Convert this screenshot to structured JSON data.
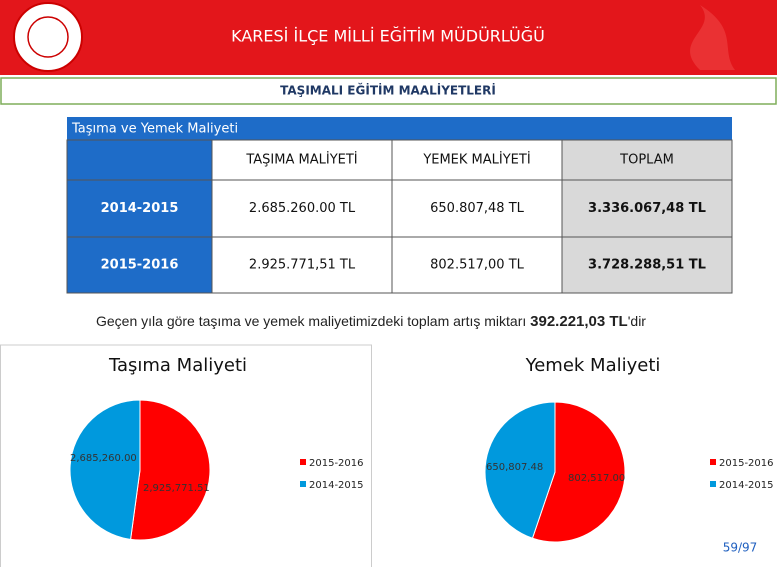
{
  "header": {
    "title": "KARESİ İLÇE MİLLİ EĞİTİM MÜDÜRLÜĞÜ",
    "subtitle": "TAŞIMALI EĞİTİM MAALİYETLERİ"
  },
  "table": {
    "caption": "Taşıma ve Yemek Maliyeti",
    "columns": [
      "TAŞIMA MALİYETİ",
      "YEMEK MALİYETİ",
      "TOPLAM"
    ],
    "rows": [
      [
        "2014-2015",
        "2.685.260.00 TL",
        "650.807,48 TL",
        "3.336.067,48 TL"
      ],
      [
        "2015-2016",
        "2.925.771,51 TL",
        "802.517,00 TL",
        "3.728.288,51 TL"
      ]
    ]
  },
  "note": {
    "text": "Geçen yıla göre taşıma ve yemek maliyetimizdeki toplam artış miktarı ",
    "amount": "392.221,03 TL",
    "suffix": "'dir"
  },
  "chart_data": [
    {
      "type": "pie",
      "title": "Taşıma Maliyeti",
      "categories": [
        "2015-2016",
        "2014-2015"
      ],
      "values": [
        2925771.51,
        2685260
      ],
      "value_labels": [
        "2,925,771.51",
        "2,685,260.00"
      ],
      "colors": [
        "#ff0000",
        "#0099dd"
      ]
    },
    {
      "type": "pie",
      "title": "Yemek Maliyeti",
      "categories": [
        "2015-2016",
        "2014-2015"
      ],
      "values": [
        802517,
        650807.48
      ],
      "value_labels": [
        "802,517.00",
        "650,807.48"
      ],
      "colors": [
        "#ff0000",
        "#0099dd"
      ]
    }
  ],
  "page_number": "59/97"
}
